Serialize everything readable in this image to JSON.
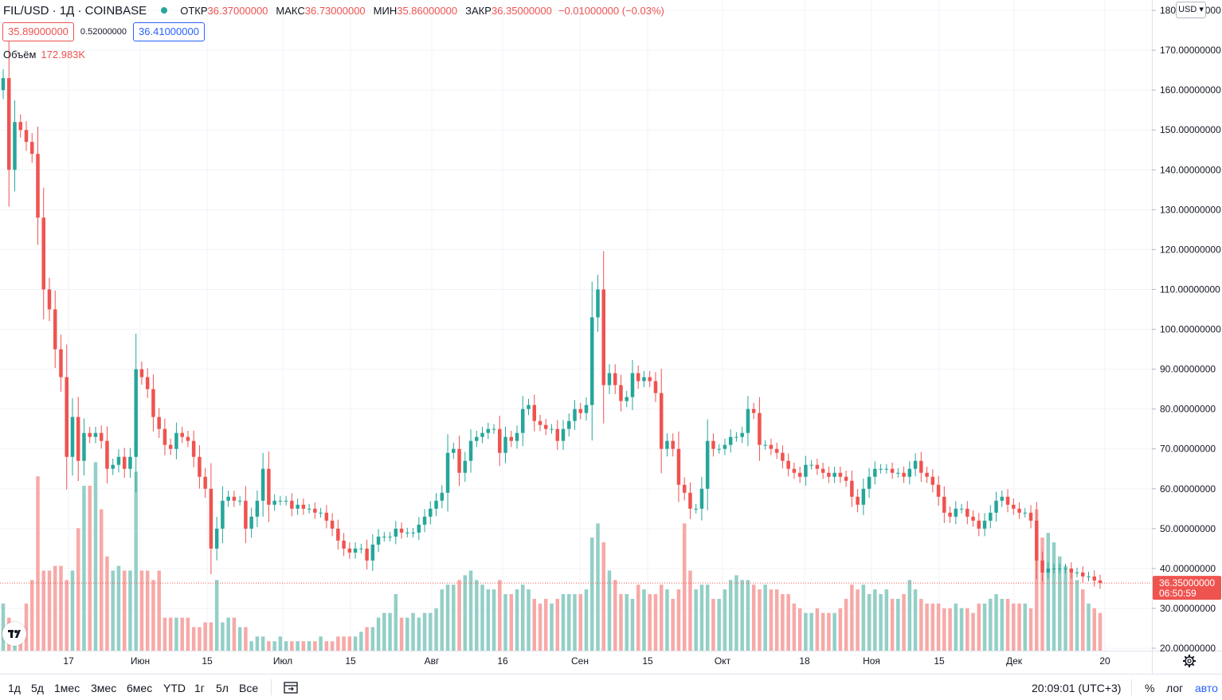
{
  "header": {
    "symbol": "FIL/USD · 1Д · COINBASE",
    "open_label": "ОТКР",
    "open_value": "36.37000000",
    "high_label": "МАКС",
    "high_value": "36.73000000",
    "low_label": "МИН",
    "low_value": "35.86000000",
    "close_label": "ЗАКР",
    "close_value": "36.35000000",
    "change_value": "−0.01000000 (−0.03%)",
    "bid": "35.89000000",
    "spread": "0.52000000",
    "ask": "36.41000000",
    "volume_label": "Объём",
    "volume_value": "172.983K",
    "currency_button": "USD"
  },
  "price_tag": {
    "value": "36.35000000",
    "countdown": "06:50:59"
  },
  "bottom_bar": {
    "ranges": [
      "1д",
      "5д",
      "1мес",
      "3мес",
      "6мес",
      "YTD",
      "1г",
      "5л",
      "Все"
    ],
    "time": "20:09:01 (UTC+3)",
    "percent": "%",
    "log": "лог",
    "auto": "авто"
  },
  "colors": {
    "up": "#26a69a",
    "down": "#ef5350",
    "up_vol": "#93cfc7",
    "down_vol": "#f7a9a7"
  },
  "chart_data": {
    "type": "candlestick",
    "y_axis": {
      "ticks": [
        "180.00000000",
        "170.00000000",
        "160.00000000",
        "150.00000000",
        "140.00000000",
        "130.00000000",
        "120.00000000",
        "110.00000000",
        "100.00000000",
        "90.00000000",
        "80.00000000",
        "70.00000000",
        "60.00000000",
        "50.00000000",
        "40.00000000",
        "30.00000000",
        "20.00000000"
      ],
      "min": 20,
      "max": 180
    },
    "x_axis": {
      "ticks": [
        "17",
        "Июн",
        "15",
        "Июл",
        "15",
        "Авг",
        "16",
        "Сен",
        "15",
        "Окт",
        "18",
        "Ноя",
        "15",
        "Дек",
        "20"
      ]
    },
    "last_price": 36.35,
    "closes": [
      163,
      140,
      152,
      150,
      147,
      144,
      128,
      110,
      105,
      95,
      88,
      68,
      78,
      67,
      74,
      73,
      74,
      72,
      65,
      66,
      68,
      65,
      68,
      90,
      88,
      85,
      78,
      75,
      71,
      70,
      74,
      73,
      72,
      68,
      63,
      60,
      45,
      50,
      57,
      58,
      57,
      57,
      50,
      53,
      57,
      65,
      56,
      57,
      57,
      57,
      55,
      56,
      55,
      55,
      54,
      54,
      52,
      50,
      47,
      45,
      44,
      45,
      45,
      42,
      46,
      48,
      48,
      48,
      50,
      49,
      49,
      49,
      51,
      53,
      55,
      57,
      59,
      69,
      70,
      64,
      67,
      72,
      73,
      74,
      75,
      75,
      69,
      73,
      72,
      74,
      80,
      81,
      77,
      76,
      75,
      75,
      72,
      75,
      77,
      80,
      79,
      81,
      103,
      110,
      86,
      89,
      86,
      82,
      83,
      89,
      87,
      88,
      87,
      84,
      70,
      72,
      70,
      61,
      59,
      55,
      55,
      60,
      72,
      70,
      70,
      71,
      73,
      73,
      74,
      80,
      79,
      71,
      71,
      70,
      69,
      67,
      65,
      64,
      63,
      66,
      66,
      65,
      64,
      63,
      64,
      63,
      62,
      58,
      56,
      60,
      63,
      65,
      65,
      65,
      64,
      64,
      63,
      65,
      67,
      64,
      63,
      61,
      58,
      54,
      53,
      55,
      55,
      53,
      52,
      50,
      52,
      54,
      57,
      58,
      56,
      55,
      54,
      54,
      52,
      42,
      39,
      40,
      40,
      40,
      40,
      39,
      39,
      38,
      38,
      37,
      36.35
    ],
    "volumes": [
      30,
      27,
      25,
      25,
      30,
      35,
      57,
      37,
      37,
      38,
      38,
      35,
      37,
      46,
      55,
      55,
      60,
      50,
      40,
      37,
      38,
      37,
      37,
      58,
      37,
      37,
      35,
      37,
      27,
      27,
      27,
      27,
      27,
      25,
      25,
      26,
      26,
      35,
      26,
      27,
      27,
      25,
      25,
      22,
      23,
      23,
      22,
      22,
      23,
      22,
      22,
      22,
      22,
      22,
      22,
      23,
      22,
      22,
      23,
      23,
      23,
      23,
      24,
      25,
      25,
      27,
      28,
      28,
      32,
      27,
      27,
      28,
      27,
      28,
      28,
      29,
      33,
      34,
      34,
      35,
      36,
      37,
      35,
      34,
      33,
      33,
      35,
      32,
      32,
      33,
      34,
      33,
      31,
      30,
      31,
      30,
      31,
      32,
      32,
      32,
      32,
      33,
      44,
      47,
      43,
      37,
      35,
      32,
      32,
      31,
      34,
      33,
      32,
      32,
      34,
      33,
      31,
      33,
      47,
      37,
      33,
      34,
      34,
      31,
      31,
      33,
      35,
      36,
      35,
      35,
      34,
      33,
      34,
      33,
      33,
      32,
      32,
      30,
      29,
      28,
      28,
      29,
      28,
      28,
      28,
      29,
      31,
      34,
      33,
      34,
      32,
      33,
      32,
      33,
      31,
      31,
      32,
      35,
      33,
      31,
      30,
      30,
      30,
      29,
      29,
      30,
      29,
      29,
      28,
      30,
      30,
      31,
      32,
      31,
      31,
      30,
      30,
      30,
      29,
      50,
      44,
      45,
      43,
      40,
      38,
      37,
      35,
      33,
      30,
      29,
      28
    ]
  }
}
